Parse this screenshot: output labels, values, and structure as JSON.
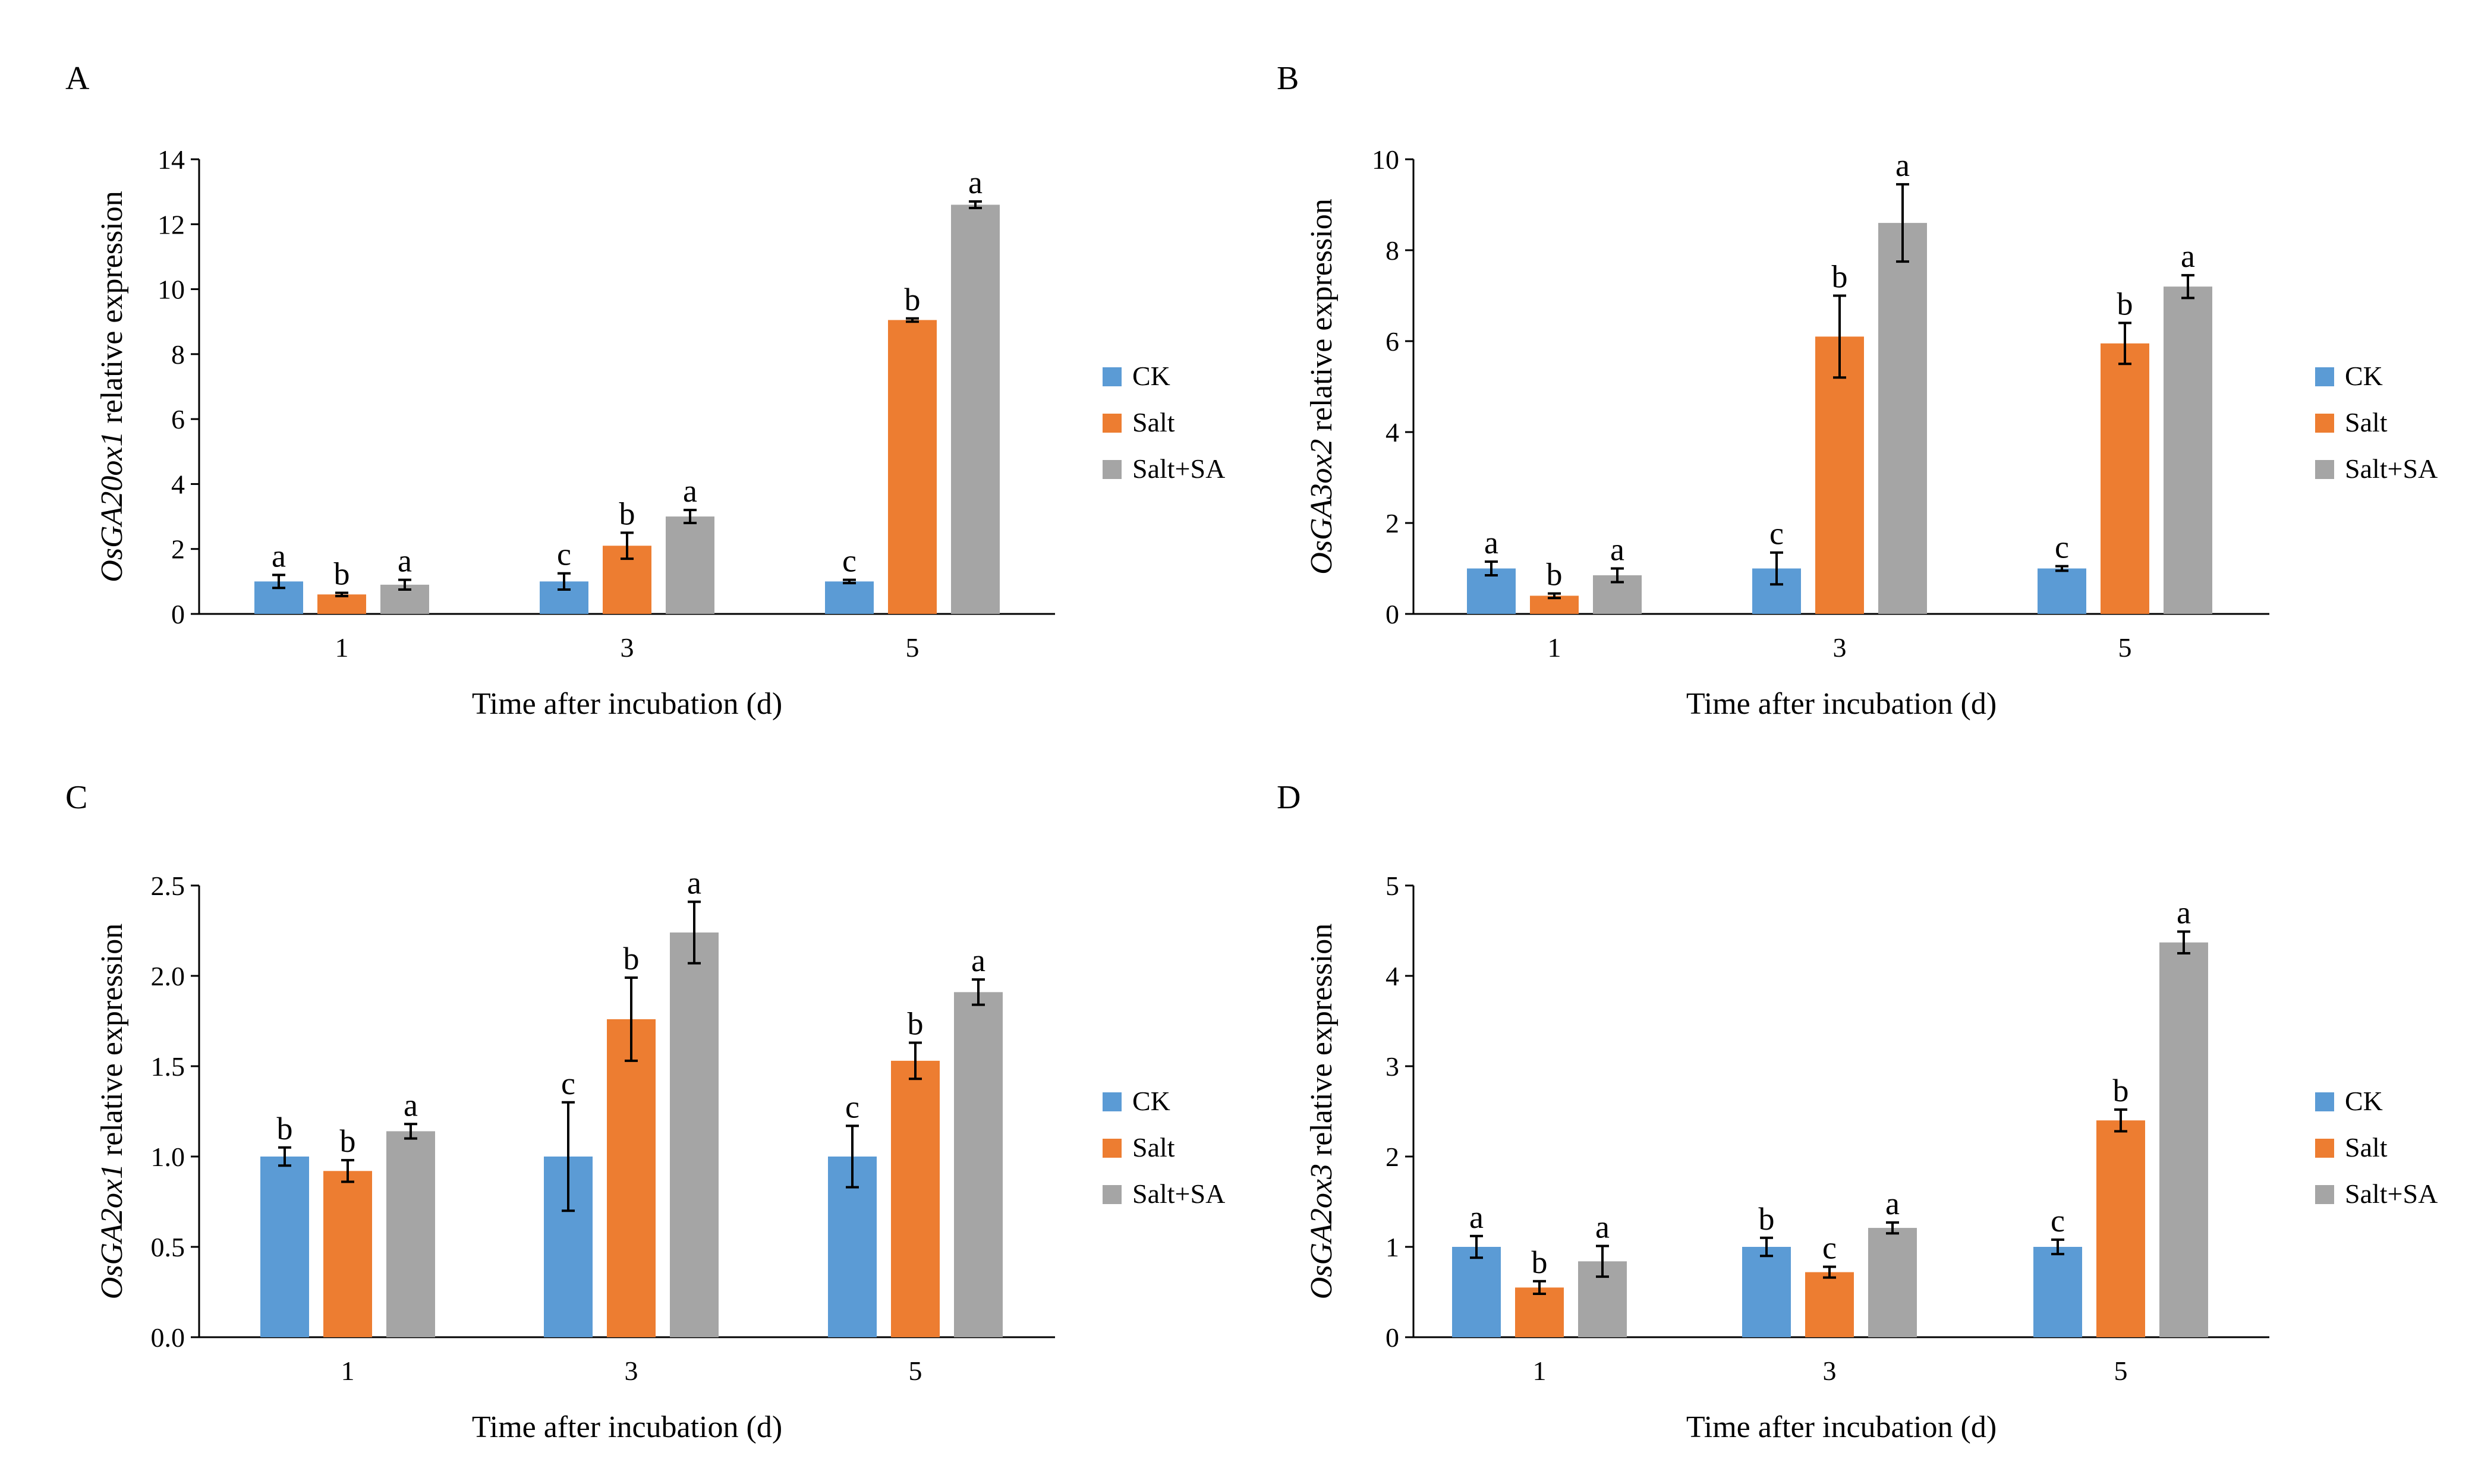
{
  "colors": {
    "CK": "#5b9bd5",
    "Salt": "#ed7d31",
    "Salt+SA": "#a5a5a5"
  },
  "chart_data": [
    {
      "panel": "A",
      "type": "bar",
      "ylabel_gene": "OsGA20ox1",
      "ylabel_rest": " relative expression",
      "xlabel": "Time after incubation (d)",
      "categories": [
        "1",
        "3",
        "5"
      ],
      "ylim": [
        0,
        14
      ],
      "ytick_values": [
        0,
        2,
        4,
        6,
        8,
        10,
        12,
        14
      ],
      "ytick_labels": [
        "0",
        "2",
        "4",
        "6",
        "8",
        "10",
        "12",
        "14"
      ],
      "legend": [
        "CK",
        "Salt",
        "Salt+SA"
      ],
      "series": [
        {
          "name": "CK",
          "values": [
            1.0,
            1.0,
            1.0
          ],
          "errors": [
            0.2,
            0.25,
            0.05
          ],
          "letters": [
            "a",
            "c",
            "c"
          ]
        },
        {
          "name": "Salt",
          "values": [
            0.6,
            2.1,
            9.05
          ],
          "errors": [
            0.05,
            0.4,
            0.05
          ],
          "letters": [
            "b",
            "b",
            "b"
          ]
        },
        {
          "name": "Salt+SA",
          "values": [
            0.9,
            3.0,
            12.6
          ],
          "errors": [
            0.15,
            0.2,
            0.1
          ],
          "letters": [
            "a",
            "a",
            "a"
          ]
        }
      ]
    },
    {
      "panel": "B",
      "type": "bar",
      "ylabel_gene": "OsGA3ox2",
      "ylabel_rest": " relative expression",
      "xlabel": "Time after incubation (d)",
      "categories": [
        "1",
        "3",
        "5"
      ],
      "ylim": [
        0,
        10
      ],
      "ytick_values": [
        0,
        2,
        4,
        6,
        8,
        10
      ],
      "ytick_labels": [
        "0",
        "2",
        "4",
        "6",
        "8",
        "10"
      ],
      "legend": [
        "CK",
        "Salt",
        "Salt+SA"
      ],
      "series": [
        {
          "name": "CK",
          "values": [
            1.0,
            1.0,
            1.0
          ],
          "errors": [
            0.15,
            0.35,
            0.05
          ],
          "letters": [
            "a",
            "c",
            "c"
          ]
        },
        {
          "name": "Salt",
          "values": [
            0.4,
            6.1,
            5.95
          ],
          "errors": [
            0.05,
            0.9,
            0.45
          ],
          "letters": [
            "b",
            "b",
            "b"
          ]
        },
        {
          "name": "Salt+SA",
          "values": [
            0.85,
            8.6,
            7.2
          ],
          "errors": [
            0.15,
            0.85,
            0.25
          ],
          "letters": [
            "a",
            "a",
            "a"
          ]
        }
      ]
    },
    {
      "panel": "C",
      "type": "bar",
      "ylabel_gene": "OsGA2ox1",
      "ylabel_rest": " relative expression",
      "xlabel": "Time after incubation (d)",
      "categories": [
        "1",
        "3",
        "5"
      ],
      "ylim": [
        0,
        2.5
      ],
      "ytick_values": [
        0,
        0.5,
        1.0,
        1.5,
        2.0,
        2.5
      ],
      "ytick_labels": [
        "0.0",
        "0.5",
        "1.0",
        "1.5",
        "2.0",
        "2.5"
      ],
      "legend": [
        "CK",
        "Salt",
        "Salt+SA"
      ],
      "series": [
        {
          "name": "CK",
          "values": [
            1.0,
            1.0,
            1.0
          ],
          "errors": [
            0.05,
            0.3,
            0.17
          ],
          "letters": [
            "b",
            "c",
            "c"
          ]
        },
        {
          "name": "Salt",
          "values": [
            0.92,
            1.76,
            1.53
          ],
          "errors": [
            0.06,
            0.23,
            0.1
          ],
          "letters": [
            "b",
            "b",
            "b"
          ]
        },
        {
          "name": "Salt+SA",
          "values": [
            1.14,
            2.24,
            1.91
          ],
          "errors": [
            0.04,
            0.17,
            0.07
          ],
          "letters": [
            "a",
            "a",
            "a"
          ]
        }
      ]
    },
    {
      "panel": "D",
      "type": "bar",
      "ylabel_gene": "OsGA2ox3",
      "ylabel_rest": " relative expression",
      "xlabel": "Time after incubation (d)",
      "categories": [
        "1",
        "3",
        "5"
      ],
      "ylim": [
        0,
        5
      ],
      "ytick_values": [
        0,
        1,
        2,
        3,
        4,
        5
      ],
      "ytick_labels": [
        "0",
        "1",
        "2",
        "3",
        "4",
        "5"
      ],
      "legend": [
        "CK",
        "Salt",
        "Salt+SA"
      ],
      "series": [
        {
          "name": "CK",
          "values": [
            1.0,
            1.0,
            1.0
          ],
          "errors": [
            0.12,
            0.1,
            0.08
          ],
          "letters": [
            "a",
            "b",
            "c"
          ]
        },
        {
          "name": "Salt",
          "values": [
            0.55,
            0.72,
            2.4
          ],
          "errors": [
            0.07,
            0.06,
            0.12
          ],
          "letters": [
            "b",
            "c",
            "b"
          ]
        },
        {
          "name": "Salt+SA",
          "values": [
            0.84,
            1.21,
            4.37
          ],
          "errors": [
            0.17,
            0.06,
            0.12
          ],
          "letters": [
            "a",
            "a",
            "a"
          ]
        }
      ]
    }
  ]
}
